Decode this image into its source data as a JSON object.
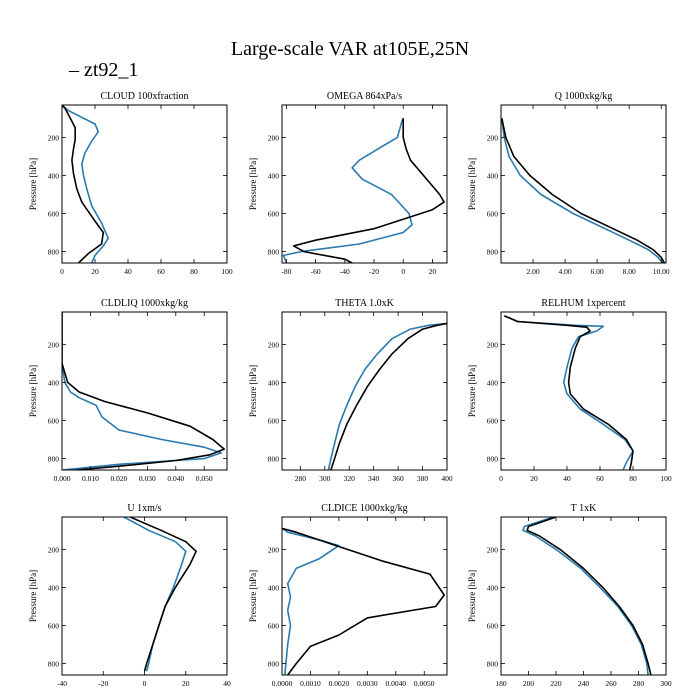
{
  "figure": {
    "title": "Large-scale VAR at105E,25N",
    "legend": {
      "label": "zt92_1",
      "marker": "–",
      "placement": "top-left"
    }
  },
  "colors": {
    "series_1": "#2a7ab0",
    "series_2": "#000000"
  },
  "chart_data": [
    {
      "type": "line",
      "title": "CLOUD  100xfraction",
      "ylabel": "Pressure [hPa]",
      "xlim": [
        0,
        100
      ],
      "xticks": [
        0,
        20,
        40,
        60,
        80,
        100
      ],
      "xtick_labels": [
        "0",
        "20",
        "40",
        "60",
        "80",
        "100"
      ],
      "ylim": [
        30,
        860
      ],
      "yticks": [
        200,
        400,
        600,
        800
      ],
      "ytick_labels": [
        "200",
        "400",
        "600",
        "800"
      ],
      "series": [
        {
          "x": [
            0,
            4,
            20,
            22,
            18,
            14,
            12,
            13,
            15,
            18,
            24,
            28,
            25,
            20,
            18
          ],
          "y": [
            30,
            60,
            130,
            170,
            220,
            280,
            340,
            400,
            470,
            560,
            650,
            730,
            770,
            820,
            860
          ]
        },
        {
          "x": [
            0,
            2,
            5,
            8,
            8,
            7,
            6,
            7,
            9,
            12,
            20,
            25,
            24,
            16,
            10
          ],
          "y": [
            30,
            50,
            100,
            150,
            210,
            260,
            320,
            390,
            470,
            540,
            640,
            700,
            760,
            810,
            860
          ]
        }
      ]
    },
    {
      "type": "line",
      "title": "OMEGA  864xPa/s",
      "ylabel": "Pressure [hPa]",
      "xlim": [
        -83,
        30
      ],
      "xticks": [
        -80,
        -60,
        -40,
        -20,
        0,
        20
      ],
      "xtick_labels": [
        "-80",
        "-60",
        "-40",
        "-20",
        "0",
        "20"
      ],
      "ylim": [
        30,
        860
      ],
      "yticks": [
        200,
        400,
        600,
        800
      ],
      "ytick_labels": [
        "200",
        "400",
        "600",
        "800"
      ],
      "series": [
        {
          "x": [
            0,
            -1,
            -4,
            -15,
            -30,
            -35,
            -28,
            -8,
            4,
            6,
            0,
            -30,
            -70,
            -82,
            -80
          ],
          "y": [
            100,
            120,
            200,
            250,
            320,
            360,
            420,
            500,
            600,
            660,
            700,
            760,
            800,
            820,
            860
          ]
        },
        {
          "x": [
            0,
            0,
            0,
            2,
            5,
            25,
            28,
            20,
            -20,
            -60,
            -75,
            -68,
            -40,
            -35
          ],
          "y": [
            100,
            120,
            200,
            260,
            320,
            500,
            540,
            580,
            680,
            740,
            770,
            800,
            840,
            860
          ]
        }
      ]
    },
    {
      "type": "line",
      "title": "Q  1000xkg/kg",
      "ylabel": "Pressure [hPa]",
      "xlim": [
        0,
        10.3
      ],
      "xticks": [
        2,
        4,
        6,
        8,
        10
      ],
      "xtick_labels": [
        "2.00",
        "4.00",
        "6.00",
        "8.00",
        "10.00"
      ],
      "ylim": [
        30,
        860
      ],
      "yticks": [
        200,
        400,
        600,
        800
      ],
      "ytick_labels": [
        "200",
        "400",
        "600",
        "800"
      ],
      "series": [
        {
          "x": [
            0.05,
            0.2,
            0.5,
            1.2,
            2.5,
            4.5,
            6.5,
            8,
            9.2,
            9.8,
            10.1
          ],
          "y": [
            100,
            200,
            300,
            400,
            500,
            600,
            680,
            740,
            790,
            830,
            860
          ]
        },
        {
          "x": [
            0.05,
            0.3,
            0.8,
            1.8,
            3.2,
            5,
            7,
            8.5,
            9.5,
            10,
            10.2
          ],
          "y": [
            100,
            200,
            300,
            400,
            500,
            600,
            680,
            740,
            790,
            830,
            860
          ]
        }
      ]
    },
    {
      "type": "line",
      "title": "CLDLIQ  1000xkg/kg",
      "ylabel": "Pressure [hPa]",
      "xlim": [
        0,
        0.058
      ],
      "xticks": [
        0,
        0.01,
        0.02,
        0.03,
        0.04,
        0.05
      ],
      "xtick_labels": [
        "0.000",
        "0.010",
        "0.020",
        "0.030",
        "0.040",
        "0.050"
      ],
      "ylim": [
        30,
        860
      ],
      "yticks": [
        200,
        400,
        600,
        800
      ],
      "ytick_labels": [
        "200",
        "400",
        "600",
        "800"
      ],
      "series": [
        {
          "x": [
            0,
            0,
            0.001,
            0.003,
            0.006,
            0.009,
            0.012,
            0.014,
            0.02,
            0.035,
            0.05,
            0.056,
            0.05,
            0.02,
            0
          ],
          "y": [
            30,
            300,
            400,
            450,
            480,
            500,
            520,
            580,
            650,
            700,
            740,
            770,
            800,
            830,
            860
          ]
        },
        {
          "x": [
            0,
            0,
            0.002,
            0.006,
            0.015,
            0.03,
            0.045,
            0.053,
            0.057,
            0.052,
            0.04,
            0.02,
            0.005
          ],
          "y": [
            30,
            300,
            400,
            450,
            500,
            560,
            630,
            700,
            750,
            780,
            810,
            840,
            860
          ]
        }
      ]
    },
    {
      "type": "line",
      "title": "THETA  1.0xK",
      "ylabel": "Pressure [hPa]",
      "xlim": [
        265,
        400
      ],
      "xticks": [
        280,
        300,
        320,
        340,
        360,
        380,
        400
      ],
      "xtick_labels": [
        "280",
        "300",
        "320",
        "340",
        "360",
        "380",
        "400"
      ],
      "ylim": [
        30,
        860
      ],
      "yticks": [
        200,
        400,
        600,
        800
      ],
      "ytick_labels": [
        "200",
        "400",
        "600",
        "800"
      ],
      "series": [
        {
          "x": [
            400,
            385,
            370,
            355,
            343,
            333,
            325,
            318,
            312,
            308,
            305,
            303
          ],
          "y": [
            90,
            100,
            120,
            170,
            250,
            330,
            420,
            520,
            620,
            720,
            800,
            860
          ]
        },
        {
          "x": [
            400,
            392,
            380,
            368,
            355,
            345,
            335,
            326,
            318,
            312,
            308,
            305
          ],
          "y": [
            90,
            100,
            120,
            170,
            250,
            330,
            420,
            520,
            620,
            720,
            800,
            860
          ]
        }
      ]
    },
    {
      "type": "line",
      "title": "RELHUM  1xpercent",
      "ylabel": "Pressure [hPa]",
      "xlim": [
        0,
        100
      ],
      "xticks": [
        0,
        20,
        40,
        60,
        80,
        100
      ],
      "xtick_labels": [
        "0",
        "20",
        "40",
        "60",
        "80",
        "100"
      ],
      "ylim": [
        30,
        860
      ],
      "yticks": [
        200,
        400,
        600,
        800
      ],
      "ytick_labels": [
        "200",
        "400",
        "600",
        "800"
      ],
      "series": [
        {
          "x": [
            2,
            10,
            45,
            62,
            58,
            47,
            43,
            40,
            38,
            40,
            48,
            62,
            75,
            80,
            76,
            74
          ],
          "y": [
            50,
            80,
            100,
            105,
            130,
            160,
            220,
            320,
            400,
            460,
            540,
            620,
            700,
            760,
            820,
            860
          ]
        },
        {
          "x": [
            2,
            10,
            40,
            52,
            54,
            48,
            45,
            42,
            41,
            42,
            50,
            65,
            76,
            80,
            79,
            78
          ],
          "y": [
            50,
            80,
            100,
            110,
            130,
            160,
            220,
            320,
            400,
            460,
            540,
            620,
            700,
            760,
            820,
            860
          ]
        }
      ]
    },
    {
      "type": "line",
      "title": "U  1xm/s",
      "ylabel": "Pressure [hPa]",
      "xlim": [
        -40,
        40
      ],
      "xticks": [
        -40,
        -20,
        0,
        20,
        40
      ],
      "xtick_labels": [
        "-40",
        "-20",
        "0",
        "20",
        "40"
      ],
      "ylim": [
        30,
        860
      ],
      "yticks": [
        200,
        400,
        600,
        800
      ],
      "ytick_labels": [
        "200",
        "400",
        "600",
        "800"
      ],
      "series": [
        {
          "x": [
            -10,
            2,
            15,
            20,
            18,
            14,
            10,
            7,
            4,
            2,
            1
          ],
          "y": [
            30,
            100,
            160,
            210,
            280,
            400,
            500,
            600,
            700,
            800,
            840
          ]
        },
        {
          "x": [
            -7,
            8,
            20,
            25,
            22,
            15,
            10,
            7,
            4,
            1,
            0
          ],
          "y": [
            30,
            100,
            160,
            210,
            280,
            400,
            500,
            600,
            700,
            800,
            840
          ]
        }
      ]
    },
    {
      "type": "line",
      "title": "CLDICE  1000xkg/kg",
      "ylabel": "Pressure [hPa]",
      "xlim": [
        0,
        0.0058
      ],
      "xticks": [
        0,
        0.001,
        0.002,
        0.003,
        0.004,
        0.005
      ],
      "xtick_labels": [
        "0.0000",
        "0.0010",
        "0.0020",
        "0.0030",
        "0.0040",
        "0.0050"
      ],
      "ylim": [
        30,
        860
      ],
      "yticks": [
        200,
        400,
        600,
        800
      ],
      "ytick_labels": [
        "200",
        "400",
        "600",
        "800"
      ],
      "series": [
        {
          "x": [
            0,
            0.0002,
            0.0013,
            0.002,
            0.0013,
            0.0005,
            0.0002,
            0.0003,
            0.0002,
            0.0003,
            0.0002,
            0.0001
          ],
          "y": [
            90,
            110,
            150,
            180,
            250,
            300,
            380,
            450,
            520,
            600,
            700,
            860
          ]
        },
        {
          "x": [
            0,
            0.0005,
            0.0019,
            0.0035,
            0.0052,
            0.0057,
            0.0054,
            0.003,
            0.002,
            0.001,
            0.0005,
            0.0002
          ],
          "y": [
            90,
            110,
            180,
            260,
            330,
            440,
            500,
            560,
            650,
            710,
            800,
            860
          ]
        }
      ]
    },
    {
      "type": "line",
      "title": "T  1xK",
      "ylabel": "Pressure [hPa]",
      "xlim": [
        180,
        300
      ],
      "xticks": [
        180,
        200,
        220,
        240,
        260,
        280,
        300
      ],
      "xtick_labels": [
        "180",
        "200",
        "220",
        "240",
        "260",
        "280",
        "300"
      ],
      "ylim": [
        30,
        860
      ],
      "yticks": [
        200,
        400,
        600,
        800
      ],
      "ytick_labels": [
        "200",
        "400",
        "600",
        "800"
      ],
      "series": [
        {
          "x": [
            218,
            197,
            196,
            205,
            220,
            238,
            252,
            265,
            275,
            282,
            286,
            287
          ],
          "y": [
            30,
            80,
            100,
            130,
            200,
            300,
            400,
            500,
            600,
            700,
            800,
            860
          ]
        },
        {
          "x": [
            220,
            200,
            199,
            208,
            223,
            240,
            254,
            266,
            276,
            283,
            287,
            289
          ],
          "y": [
            30,
            80,
            100,
            130,
            200,
            300,
            400,
            500,
            600,
            700,
            800,
            860
          ]
        }
      ]
    }
  ]
}
